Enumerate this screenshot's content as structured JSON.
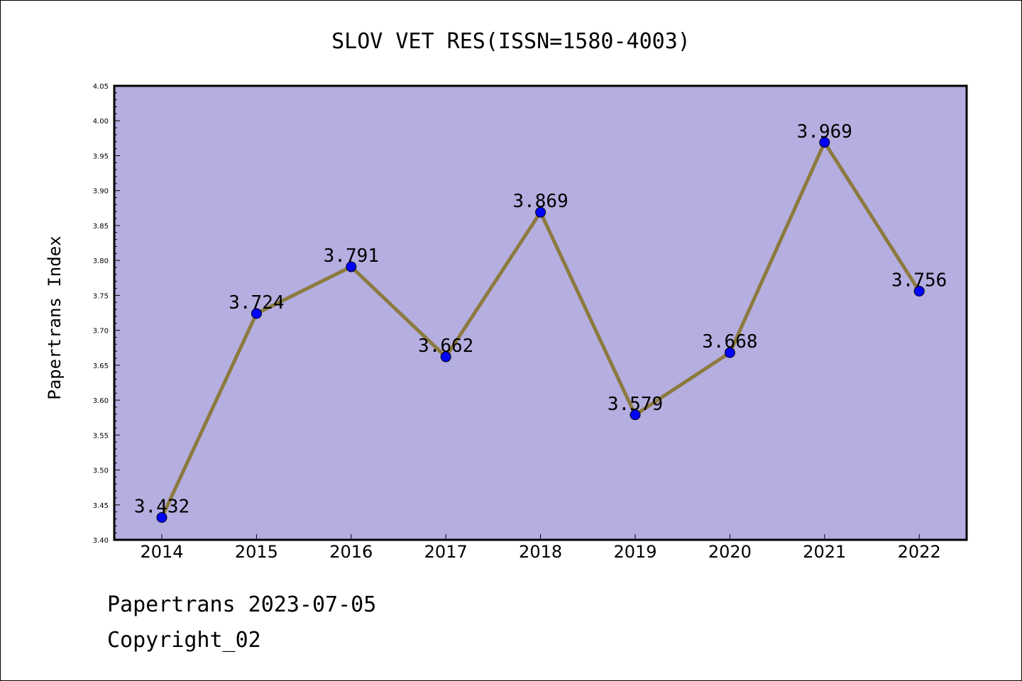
{
  "chart_data": {
    "type": "line",
    "title": "SLOV VET RES(ISSN=1580-4003)",
    "xlabel": "",
    "ylabel": "Papertrans Index",
    "categories": [
      "2014",
      "2015",
      "2016",
      "2017",
      "2018",
      "2019",
      "2020",
      "2021",
      "2022"
    ],
    "values": [
      3.432,
      3.724,
      3.791,
      3.662,
      3.869,
      3.579,
      3.668,
      3.969,
      3.756
    ],
    "data_labels": [
      "3.432",
      "3.724",
      "3.791",
      "3.662",
      "3.869",
      "3.579",
      "3.668",
      "3.969",
      "3.756"
    ],
    "ylim": [
      3.4,
      4.05
    ],
    "yticks": [
      "3.40",
      "3.45",
      "3.50",
      "3.55",
      "3.60",
      "3.65",
      "3.70",
      "3.75",
      "3.80",
      "3.85",
      "3.90",
      "3.95",
      "4.00",
      "4.05"
    ],
    "grid": false,
    "legend": "none",
    "colors": {
      "plot_background": "#b5aee0",
      "line": "#8c7a3f",
      "marker": "#0000ff"
    }
  },
  "footer": {
    "date_text": "Papertrans 2023-07-05",
    "copyright_text": "Copyright_02"
  }
}
